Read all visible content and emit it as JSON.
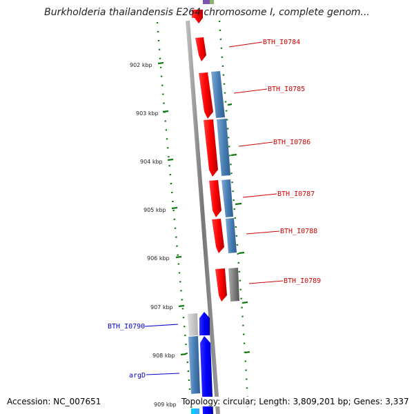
{
  "title": "Burkholderia thailandensis E264 chromosome I, complete genom...",
  "footer": {
    "accession": "Accession: NC_007651",
    "topology": "Topology: circular; Length: 3,809,201 bp; Genes: 3,337"
  },
  "ticks": {
    "t902": "902 kbp",
    "t903": "903 kbp",
    "t904": "904 kbp",
    "t905": "905 kbp",
    "t906": "906 kbp",
    "t907": "907 kbp",
    "t908": "908 kbp",
    "t909": "909 kbp"
  },
  "genes": {
    "g0784": "BTH_I0784",
    "g0785": "BTH_I0785",
    "g0786": "BTH_I0786",
    "g0787": "BTH_I0787",
    "g0788": "BTH_I0788",
    "g0789": "BTH_I0789",
    "g0790": "BTH_I0790",
    "argD": "argD"
  },
  "colors": {
    "forward_gene": "#ff0000",
    "reverse_gene": "#0000ff",
    "cds_block": "#4a7fb5",
    "backbone": "#888888",
    "tick_mark": "#117711",
    "label_red": "#cc0000",
    "label_blue": "#0000cc"
  }
}
